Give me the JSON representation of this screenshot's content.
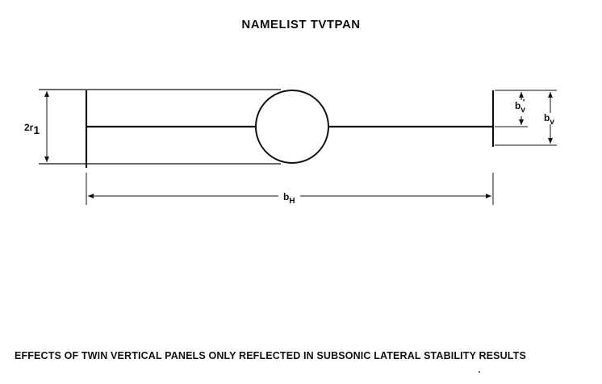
{
  "title": "NAMELIST TVTPAN",
  "caption": "EFFECTS OF TWIN VERTICAL PANELS ONLY REFLECTED IN SUBSONIC LATERAL STABILITY RESULTS",
  "labels": {
    "radius_main": "2r",
    "radius_sub": "1",
    "span_main": "b",
    "span_sub": "H",
    "panel_height_main": "b",
    "panel_height_sub": "v",
    "panel_offset_main": "b",
    "panel_offset_sub": "v",
    "panel_offset_prime": "′"
  }
}
